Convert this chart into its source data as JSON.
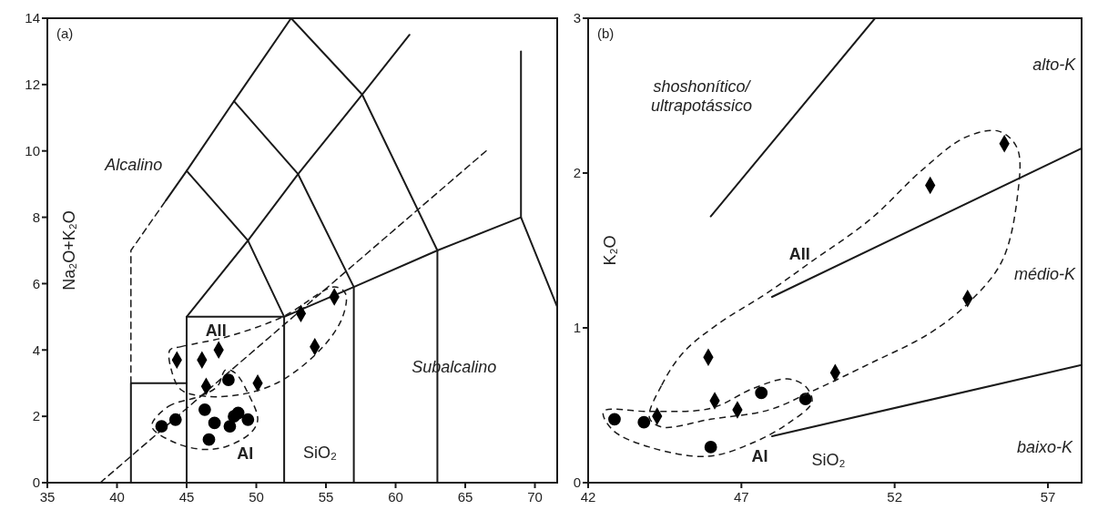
{
  "chart_data": [
    {
      "type": "scatter",
      "title": "(a)",
      "xlabel": "SiO₂",
      "ylabel": "Na₂O+K₂O",
      "xlim": [
        35,
        71.6
      ],
      "ylim": [
        0,
        14
      ],
      "xticks": [
        35,
        40,
        45,
        50,
        55,
        60,
        65,
        70
      ],
      "yticks": [
        0,
        2,
        4,
        6,
        8,
        10,
        12,
        14
      ],
      "grid": false,
      "legend": false,
      "annotations": [
        "Alcalino",
        "Subalcalino",
        "AII",
        "AI"
      ],
      "series": [
        {
          "type": "line",
          "color": "#1a1a1a",
          "line_style": "solid",
          "marker": "none",
          "x": [
            41,
            41,
            45
          ],
          "values": [
            0,
            3,
            3
          ]
        },
        {
          "type": "line",
          "color": "#1a1a1a",
          "line_style": "dashed",
          "marker": "none",
          "x": [
            41,
            41,
            43.5
          ],
          "values": [
            3,
            7,
            8.5
          ]
        },
        {
          "type": "line",
          "color": "#1a1a1a",
          "line_style": "solid",
          "marker": "none",
          "x": [
            43.5,
            45,
            48.4,
            52.5
          ],
          "values": [
            8.5,
            9.4,
            11.5,
            14
          ]
        },
        {
          "type": "line",
          "color": "#1a1a1a",
          "line_style": "solid",
          "marker": "none",
          "x": [
            45,
            45,
            52,
            52
          ],
          "values": [
            0,
            5,
            5,
            0
          ]
        },
        {
          "type": "line",
          "color": "#1a1a1a",
          "line_style": "solid",
          "marker": "none",
          "x": [
            45,
            49.4,
            53,
            57.6,
            61
          ],
          "values": [
            5,
            7.3,
            9.3,
            11.7,
            13.5
          ]
        },
        {
          "type": "line",
          "color": "#1a1a1a",
          "line_style": "solid",
          "marker": "none",
          "x": [
            45,
            49.4,
            52,
            57,
            63,
            69,
            71.6
          ],
          "values": [
            9.4,
            7.3,
            5,
            5.9,
            7,
            8,
            5.3
          ]
        },
        {
          "type": "line",
          "color": "#1a1a1a",
          "line_style": "solid",
          "marker": "none",
          "x": [
            48.4,
            53,
            57,
            57
          ],
          "values": [
            11.5,
            9.3,
            5.9,
            0
          ]
        },
        {
          "type": "line",
          "color": "#1a1a1a",
          "line_style": "solid",
          "marker": "none",
          "x": [
            52.5,
            57.6,
            63,
            63
          ],
          "values": [
            14,
            11.7,
            7,
            0
          ]
        },
        {
          "type": "line",
          "color": "#1a1a1a",
          "line_style": "solid",
          "marker": "none",
          "x": [
            69,
            69
          ],
          "values": [
            8,
            13
          ]
        },
        {
          "type": "line",
          "color": "#1a1a1a",
          "line_style": "dashed",
          "marker": "none",
          "x": [
            38.8,
            66.5
          ],
          "values": [
            0,
            10
          ]
        },
        {
          "type": "scatter",
          "color": "#000000",
          "marker": "circle",
          "x": [
            43.2,
            44.2,
            46.3,
            47.0,
            46.6,
            48.1,
            48.4,
            48.7,
            49.4,
            48.0
          ],
          "values": [
            1.7,
            1.9,
            2.2,
            1.8,
            1.3,
            1.7,
            2.0,
            2.1,
            1.9,
            3.1
          ]
        },
        {
          "type": "scatter",
          "color": "#000000",
          "marker": "diamond",
          "x": [
            44.3,
            46.1,
            47.3,
            46.4,
            50.1,
            53.2,
            55.6,
            54.2
          ],
          "values": [
            3.7,
            3.7,
            4.0,
            2.9,
            3.0,
            5.1,
            5.6,
            4.1
          ]
        }
      ]
    },
    {
      "type": "scatter",
      "title": "(b)",
      "xlabel": "SiO₂",
      "ylabel": "K₂O",
      "xlim": [
        42,
        58.1
      ],
      "ylim": [
        0,
        3
      ],
      "xticks": [
        42,
        47,
        52,
        57
      ],
      "yticks": [
        0,
        1,
        2,
        3
      ],
      "grid": false,
      "legend": false,
      "annotations": [
        "shoshonítico/\nultrapotássico",
        "alto-K",
        "médio-K",
        "baixo-K",
        "AII",
        "AI"
      ],
      "series": [
        {
          "type": "line",
          "color": "#1a1a1a",
          "line_style": "solid",
          "marker": "none",
          "x": [
            46.0,
            51.36
          ],
          "values": [
            1.72,
            3.0
          ]
        },
        {
          "type": "line",
          "color": "#1a1a1a",
          "line_style": "solid",
          "marker": "none",
          "x": [
            48.0,
            58.1
          ],
          "values": [
            1.2,
            2.16
          ]
        },
        {
          "type": "line",
          "color": "#1a1a1a",
          "line_style": "solid",
          "marker": "none",
          "x": [
            48.0,
            58.1
          ],
          "values": [
            0.3,
            0.76
          ]
        },
        {
          "type": "scatter",
          "color": "#000000",
          "marker": "circle",
          "x": [
            42.86,
            43.82,
            46.0,
            47.65,
            49.09
          ],
          "values": [
            0.41,
            0.39,
            0.23,
            0.58,
            0.54
          ]
        },
        {
          "type": "scatter",
          "color": "#000000",
          "marker": "diamond",
          "x": [
            44.25,
            45.92,
            46.13,
            46.87,
            50.06,
            53.16,
            54.38,
            55.58
          ],
          "values": [
            0.43,
            0.81,
            0.53,
            0.47,
            0.71,
            1.92,
            1.19,
            2.19
          ]
        }
      ]
    }
  ]
}
